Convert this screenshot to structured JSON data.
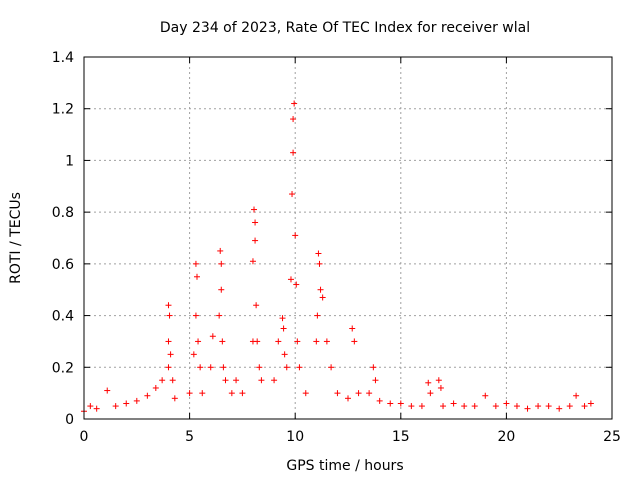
{
  "chart_data": {
    "type": "scatter",
    "title": "Day 234 of 2023, Rate Of TEC Index for receiver wlal",
    "xlabel": "GPS time / hours",
    "ylabel": "ROTI / TECUs",
    "xlim": [
      0,
      25
    ],
    "ylim": [
      0,
      1.4
    ],
    "xticks": [
      0,
      5,
      10,
      15,
      20,
      25
    ],
    "yticks": [
      0,
      0.2,
      0.4,
      0.6,
      0.8,
      1,
      1.2,
      1.4
    ],
    "xtick_labels": [
      "0",
      "5",
      "10",
      "15",
      "20",
      "25"
    ],
    "ytick_labels": [
      "0",
      "0.2",
      "0.4",
      "0.6",
      "0.8",
      "1",
      "1.2",
      "1.4"
    ],
    "grid": true,
    "marker": "+",
    "color": "#ff0000",
    "series": [
      {
        "name": "ROTI",
        "x": [
          0.0,
          0.3,
          0.6,
          1.1,
          1.5,
          2.0,
          2.5,
          3.0,
          3.4,
          3.7,
          4.0,
          4.0,
          4.0,
          4.05,
          4.1,
          4.2,
          4.3,
          5.0,
          5.2,
          5.3,
          5.3,
          5.35,
          5.4,
          5.5,
          5.6,
          6.0,
          6.1,
          6.4,
          6.45,
          6.5,
          6.5,
          6.55,
          6.6,
          6.7,
          7.0,
          7.2,
          7.5,
          8.0,
          8.0,
          8.05,
          8.1,
          8.1,
          8.15,
          8.2,
          8.3,
          8.4,
          9.0,
          9.2,
          9.4,
          9.45,
          9.5,
          9.6,
          9.8,
          9.85,
          9.9,
          9.9,
          9.95,
          10.0,
          10.05,
          10.1,
          10.2,
          10.5,
          11.0,
          11.05,
          11.1,
          11.15,
          11.2,
          11.3,
          11.5,
          11.7,
          12.0,
          12.5,
          12.7,
          12.8,
          13.0,
          13.5,
          13.7,
          13.8,
          14.0,
          14.5,
          15.0,
          15.5,
          16.0,
          16.3,
          16.4,
          16.8,
          16.9,
          17.0,
          17.5,
          18.0,
          18.5,
          19.0,
          19.5,
          20.0,
          20.5,
          21.0,
          21.5,
          22.0,
          22.5,
          23.0,
          23.3,
          23.7,
          24.0
        ],
        "y": [
          0.03,
          0.05,
          0.04,
          0.11,
          0.05,
          0.06,
          0.07,
          0.09,
          0.12,
          0.15,
          0.2,
          0.3,
          0.44,
          0.4,
          0.25,
          0.15,
          0.08,
          0.1,
          0.25,
          0.4,
          0.6,
          0.55,
          0.3,
          0.2,
          0.1,
          0.2,
          0.32,
          0.4,
          0.65,
          0.6,
          0.5,
          0.3,
          0.2,
          0.15,
          0.1,
          0.15,
          0.1,
          0.3,
          0.61,
          0.81,
          0.76,
          0.69,
          0.44,
          0.3,
          0.2,
          0.15,
          0.15,
          0.3,
          0.39,
          0.35,
          0.25,
          0.2,
          0.54,
          0.87,
          1.03,
          1.16,
          1.22,
          0.71,
          0.52,
          0.3,
          0.2,
          0.1,
          0.3,
          0.4,
          0.64,
          0.6,
          0.5,
          0.47,
          0.3,
          0.2,
          0.1,
          0.08,
          0.35,
          0.3,
          0.1,
          0.1,
          0.2,
          0.15,
          0.07,
          0.06,
          0.06,
          0.05,
          0.05,
          0.14,
          0.1,
          0.15,
          0.12,
          0.05,
          0.06,
          0.05,
          0.05,
          0.09,
          0.05,
          0.06,
          0.05,
          0.04,
          0.05,
          0.05,
          0.04,
          0.05,
          0.09,
          0.05,
          0.06
        ]
      }
    ]
  }
}
